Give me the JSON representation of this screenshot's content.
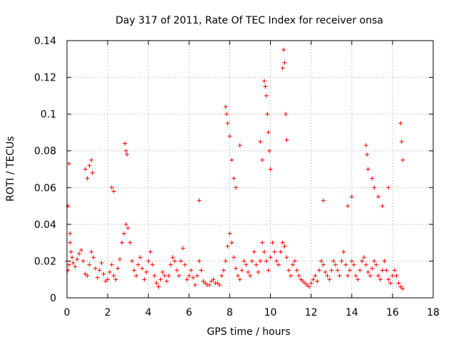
{
  "chart_data": {
    "type": "scatter",
    "title": "Day 317 of 2011, Rate Of TEC Index for receiver onsa",
    "xlabel": "GPS time / hours",
    "ylabel": "ROTI / TECUs",
    "xlim": [
      0,
      18
    ],
    "ylim": [
      0,
      0.14
    ],
    "xticks": [
      0,
      2,
      4,
      6,
      8,
      10,
      12,
      14,
      16,
      18
    ],
    "yticks": [
      0,
      0.02,
      0.04,
      0.06,
      0.08,
      0.1,
      0.12,
      0.14
    ],
    "xtick_labels": [
      "0",
      "2",
      "4",
      "6",
      "8",
      "10",
      "12",
      "14",
      "16",
      "18"
    ],
    "ytick_labels": [
      "0",
      "0.02",
      "0.04",
      "0.06",
      "0.08",
      "0.1",
      "0.12",
      "0.14"
    ],
    "grid": true,
    "marker": "+",
    "marker_color": "#ff0000",
    "series": [
      {
        "x": [
          0.0,
          0.05,
          0.1,
          0.15,
          0.2,
          0.25,
          0.3,
          0.4,
          0.5,
          0.6,
          0.7,
          0.8,
          0.9,
          1.0,
          1.1,
          1.2,
          1.3,
          1.4,
          1.5,
          1.6,
          1.7,
          1.8,
          1.9,
          2.0,
          2.1,
          2.2,
          2.3,
          2.4,
          2.5,
          2.6,
          2.7,
          2.8,
          2.9,
          3.0,
          3.1,
          3.2,
          3.3,
          3.4,
          3.5,
          3.6,
          3.7,
          3.8,
          3.9,
          4.0,
          4.1,
          4.2,
          4.3,
          4.4,
          4.5,
          4.6,
          4.7,
          4.8,
          4.9,
          5.0,
          5.1,
          5.2,
          5.3,
          5.4,
          5.5,
          5.6,
          5.7,
          5.8,
          5.9,
          6.0,
          6.1,
          6.2,
          6.3,
          6.4,
          6.5,
          6.6,
          6.7,
          6.8,
          6.9,
          7.0,
          7.1,
          7.2,
          7.3,
          7.4,
          7.5,
          7.6,
          7.7,
          7.8,
          7.9,
          8.0,
          8.1,
          8.2,
          8.3,
          8.4,
          8.5,
          8.6,
          8.7,
          8.8,
          8.9,
          9.0,
          9.1,
          9.2,
          9.3,
          9.4,
          9.5,
          9.6,
          9.7,
          9.8,
          9.9,
          10.0,
          10.1,
          10.2,
          10.3,
          10.4,
          10.5,
          10.6,
          10.7,
          10.8,
          10.9,
          11.0,
          11.1,
          11.2,
          11.3,
          11.4,
          11.5,
          11.6,
          11.7,
          11.8,
          11.9,
          12.0,
          12.1,
          12.2,
          12.3,
          12.4,
          12.5,
          12.6,
          12.7,
          12.8,
          12.9,
          13.0,
          13.1,
          13.2,
          13.3,
          13.4,
          13.5,
          13.6,
          13.7,
          13.8,
          13.9,
          14.0,
          14.1,
          14.2,
          14.3,
          14.4,
          14.5,
          14.6,
          14.7,
          14.8,
          14.9,
          15.0,
          15.1,
          15.2,
          15.3,
          15.4,
          15.5,
          15.6,
          15.7,
          15.8,
          15.9,
          16.0,
          16.1,
          16.2,
          16.3,
          16.4,
          16.5,
          0.05,
          0.1,
          0.15,
          0.9,
          1.0,
          1.1,
          1.2,
          1.25,
          2.2,
          2.3,
          2.85,
          2.9,
          2.95,
          6.5,
          7.8,
          7.85,
          7.9,
          8.0,
          8.1,
          8.2,
          8.3,
          8.5,
          9.5,
          9.6,
          9.7,
          9.75,
          9.8,
          9.85,
          9.9,
          9.95,
          10.0,
          10.6,
          10.65,
          10.7,
          10.75,
          10.8,
          12.6,
          13.8,
          14.0,
          14.7,
          14.75,
          14.8,
          15.0,
          15.1,
          15.3,
          15.5,
          15.8,
          16.4,
          16.45,
          16.5
        ],
        "y": [
          0.02,
          0.015,
          0.018,
          0.03,
          0.025,
          0.022,
          0.019,
          0.017,
          0.021,
          0.024,
          0.026,
          0.02,
          0.013,
          0.012,
          0.018,
          0.025,
          0.022,
          0.016,
          0.011,
          0.015,
          0.019,
          0.013,
          0.009,
          0.01,
          0.014,
          0.018,
          0.012,
          0.01,
          0.016,
          0.021,
          0.03,
          0.035,
          0.04,
          0.038,
          0.03,
          0.02,
          0.015,
          0.012,
          0.018,
          0.022,
          0.016,
          0.01,
          0.014,
          0.02,
          0.025,
          0.018,
          0.012,
          0.008,
          0.006,
          0.01,
          0.014,
          0.012,
          0.009,
          0.012,
          0.018,
          0.022,
          0.02,
          0.015,
          0.012,
          0.02,
          0.027,
          0.018,
          0.01,
          0.012,
          0.015,
          0.011,
          0.007,
          0.012,
          0.02,
          0.015,
          0.009,
          0.008,
          0.007,
          0.007,
          0.009,
          0.01,
          0.008,
          0.008,
          0.007,
          0.012,
          0.015,
          0.02,
          0.028,
          0.035,
          0.03,
          0.022,
          0.016,
          0.012,
          0.01,
          0.015,
          0.02,
          0.018,
          0.014,
          0.012,
          0.02,
          0.025,
          0.018,
          0.014,
          0.02,
          0.03,
          0.025,
          0.02,
          0.015,
          0.022,
          0.03,
          0.025,
          0.02,
          0.018,
          0.025,
          0.03,
          0.028,
          0.022,
          0.015,
          0.012,
          0.018,
          0.02,
          0.015,
          0.012,
          0.01,
          0.009,
          0.008,
          0.007,
          0.006,
          0.008,
          0.01,
          0.012,
          0.009,
          0.015,
          0.02,
          0.018,
          0.014,
          0.012,
          0.01,
          0.015,
          0.02,
          0.018,
          0.015,
          0.012,
          0.02,
          0.025,
          0.018,
          0.012,
          0.015,
          0.02,
          0.018,
          0.012,
          0.01,
          0.015,
          0.02,
          0.022,
          0.018,
          0.014,
          0.012,
          0.016,
          0.02,
          0.018,
          0.012,
          0.01,
          0.015,
          0.02,
          0.015,
          0.01,
          0.008,
          0.012,
          0.015,
          0.012,
          0.008,
          0.006,
          0.005,
          0.05,
          0.073,
          0.035,
          0.07,
          0.065,
          0.072,
          0.075,
          0.068,
          0.06,
          0.058,
          0.084,
          0.08,
          0.078,
          0.053,
          0.104,
          0.1,
          0.095,
          0.088,
          0.075,
          0.065,
          0.06,
          0.083,
          0.085,
          0.075,
          0.118,
          0.115,
          0.11,
          0.1,
          0.09,
          0.08,
          0.07,
          0.125,
          0.135,
          0.128,
          0.1,
          0.086,
          0.053,
          0.05,
          0.055,
          0.083,
          0.078,
          0.07,
          0.065,
          0.06,
          0.055,
          0.05,
          0.06,
          0.095,
          0.085,
          0.075
        ]
      }
    ]
  }
}
